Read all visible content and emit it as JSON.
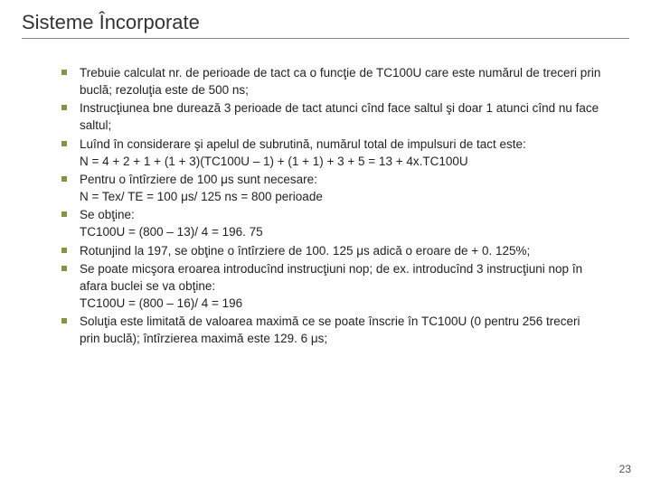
{
  "title": "Sisteme Încorporate",
  "bullets": [
    {
      "lines": [
        "Trebuie calculat nr. de perioade de tact ca o funcţie de TC100U care este numărul de treceri prin buclă; rezoluţia este de 500 ns;"
      ]
    },
    {
      "lines": [
        "Instrucţiunea bne durează 3 perioade de tact atunci cînd face saltul şi doar 1 atunci cînd nu face saltul;"
      ]
    },
    {
      "lines": [
        "Luînd în considerare şi apelul de subrutină, numărul total de impulsuri de tact este:",
        "N = 4 + 2 + 1 + (1 + 3)(TC100U – 1) + (1 + 1) + 3 + 5 = 13 + 4x.TC100U"
      ]
    },
    {
      "lines": [
        "Pentru o întîrziere de 100 μs sunt necesare:",
        "N = Tex/ TE = 100 μs/ 125 ns = 800 perioade"
      ]
    },
    {
      "lines": [
        "Se obţine:",
        "TC100U = (800 – 13)/ 4 = 196. 75"
      ]
    },
    {
      "lines": [
        "Rotunjind la 197, se obţine o întîrziere de 100. 125 μs adică o eroare de + 0. 125%;"
      ]
    },
    {
      "lines": [
        "Se poate micşora eroarea introducînd instrucţiuni nop; de ex. introducînd 3 instrucţiuni nop în afara buclei se va obţine:",
        "TC100U = (800 – 16)/ 4 = 196"
      ]
    },
    {
      "lines": [
        "Soluţia este limitată de valoarea maximă ce se poate înscrie în TC100U (0 pentru 256 treceri prin buclă); întîrzierea maximă este 129. 6 μs;"
      ]
    }
  ],
  "pageNumber": "23",
  "colors": {
    "bulletMarker": "#859348",
    "titleText": "#333333",
    "bodyText": "#222222",
    "separator": "#888888",
    "background": "#ffffff"
  },
  "typography": {
    "titleFontSize": 22,
    "bodyFontSize": 13.5,
    "bodyLineHeight": 1.42,
    "fontFamily": "Arial"
  }
}
